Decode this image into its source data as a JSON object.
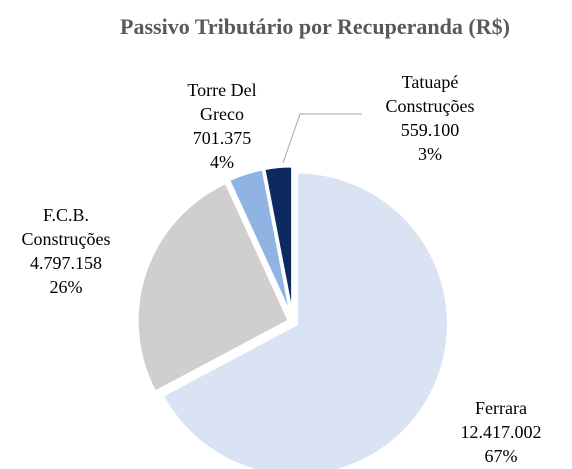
{
  "chart_data": {
    "type": "pie",
    "title": "Passivo Tributário por Recuperanda (R$)",
    "categories": [
      "Ferrara",
      "F.C.B. Construções",
      "Torre Del Greco",
      "Tatuapé Construções"
    ],
    "values": [
      12417002,
      4797158,
      701375,
      559100
    ],
    "value_labels": [
      "12.417.002",
      "4.797.158",
      "701.375",
      "559.100"
    ],
    "percents": [
      67,
      26,
      4,
      3
    ],
    "percent_labels": [
      "67%",
      "26%",
      "4%",
      "3%"
    ],
    "colors": [
      "#dae3f3",
      "#d0cece",
      "#8fb4e3",
      "#0d2a5e"
    ]
  }
}
